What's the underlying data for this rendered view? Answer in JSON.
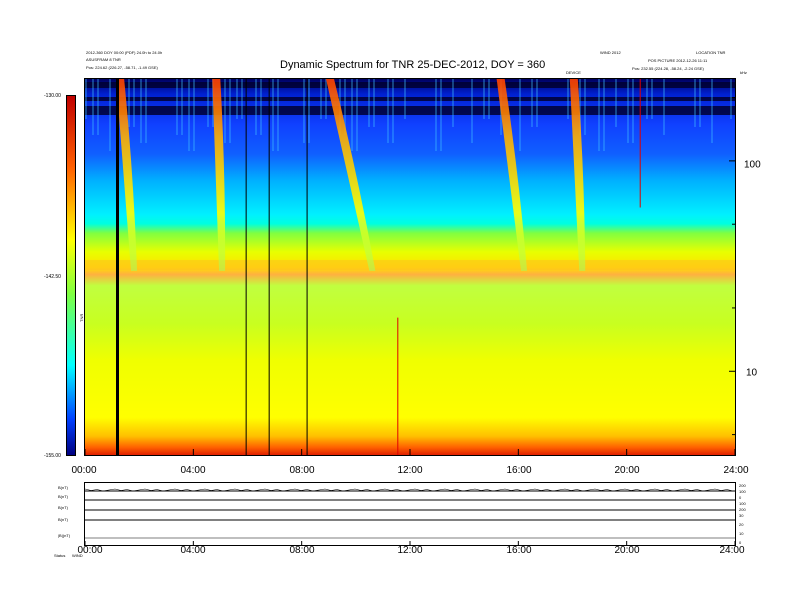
{
  "chart_data": {
    "type": "heatmap",
    "title": "Dynamic Spectrum for TNR 25-DEC-2012, DOY = 360",
    "header_left": [
      "2012-360 DOY 00:00 (PDF) 24.0h to 24.0h",
      "ASUSFRAM 8 TNR",
      "Pos:    224.62 (226.27, -58.71, -1.49 GSE)"
    ],
    "header_right": [
      "WIND 2012",
      "LOCATION TNR",
      "POS PICTURE 2012-12-26 11:11",
      "Pos:    232.55 (224.28, -58.24, -2.24 GSE)"
    ],
    "header_center": "DEVICE",
    "x_tick_labels": [
      "00:00",
      "04:00",
      "08:00",
      "12:00",
      "16:00",
      "20:00",
      "24:00"
    ],
    "x_hours": [
      0,
      4,
      8,
      12,
      16,
      20,
      24
    ],
    "y_right_tick_labels": [
      "100",
      "10"
    ],
    "y_right_tick_values": [
      100,
      10
    ],
    "y_right_unit": "kHz",
    "y_range_khz": [
      4,
      245
    ],
    "colorbar": {
      "tick_labels": [
        "-130.00",
        "-142.50",
        "-155.00"
      ],
      "tick_values": [
        -130,
        -142.5,
        -155
      ],
      "range": [
        -155,
        -130
      ],
      "label": "TNR"
    },
    "features": [
      {
        "kind": "type_iii_burst",
        "start_hour": 1.15,
        "drift_hours": 0.55
      },
      {
        "kind": "type_iii_burst",
        "start_hour": 4.7,
        "drift_hours": 0.25
      },
      {
        "kind": "type_iii_burst",
        "start_hour": 8.9,
        "drift_hours": 1.6
      },
      {
        "kind": "type_iii_burst",
        "start_hour": 15.2,
        "drift_hours": 0.9
      },
      {
        "kind": "type_iii_burst",
        "start_hour": 17.9,
        "drift_hours": 0.35
      }
    ],
    "data_gaps_hours": [
      1.2,
      5.95,
      6.8,
      8.2
    ],
    "spikes_hours": [
      11.55,
      20.5
    ],
    "plasma_line_khz": 32,
    "lower_panel": {
      "left_labels": [
        "B(nT)",
        "B(nT)",
        "B(nT)",
        "B(nT)",
        "|B|(nT)"
      ],
      "left_footer": [
        "Status",
        "WIND"
      ],
      "right_labels": [
        "200",
        "100",
        "0",
        "100",
        "200",
        "30",
        "20",
        "10",
        "0"
      ],
      "x_tick_labels": [
        "00:00",
        "04:00",
        "08:00",
        "12:00",
        "16:00",
        "20:00",
        "24:00"
      ]
    }
  }
}
